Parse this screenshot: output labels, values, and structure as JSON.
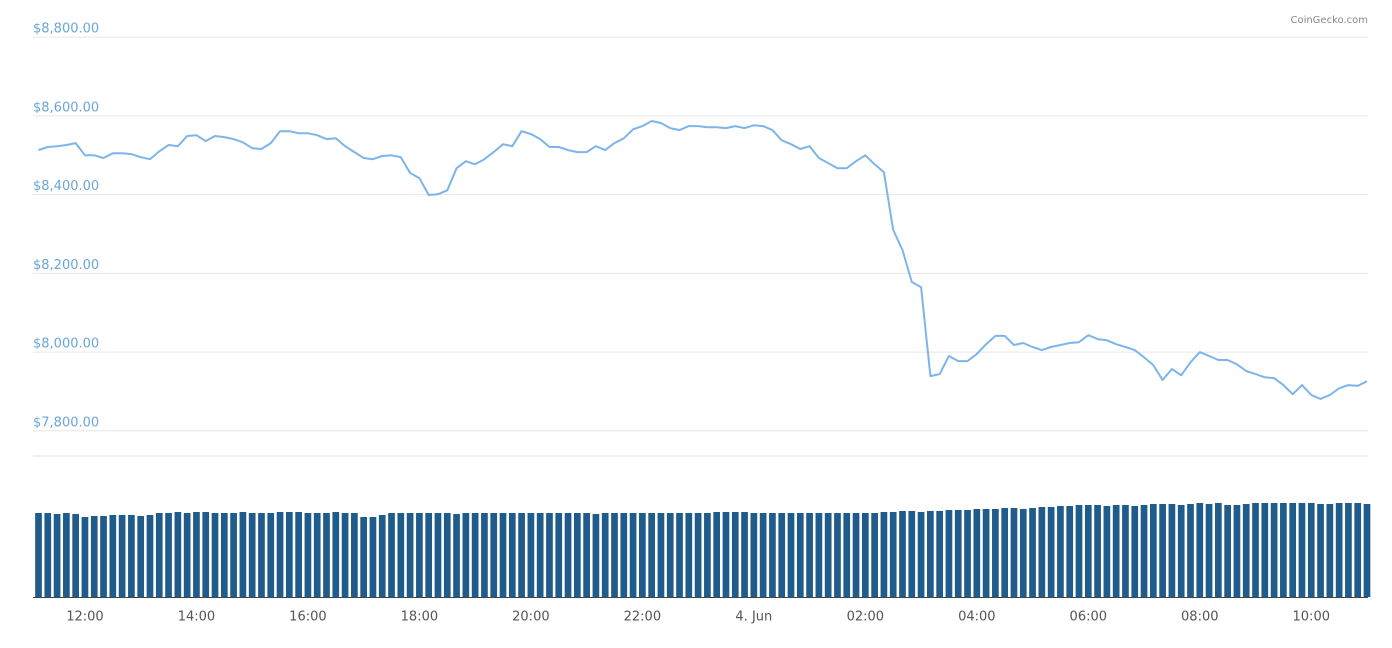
{
  "chart_data": {
    "type": "line",
    "source": "CoinGecko.com",
    "categories": [
      "11:10",
      "11:20",
      "11:30",
      "11:40",
      "11:50",
      "12:00",
      "12:10",
      "12:20",
      "12:30",
      "12:40",
      "12:50",
      "13:00",
      "13:10",
      "13:20",
      "13:30",
      "13:40",
      "13:50",
      "14:00",
      "14:10",
      "14:20",
      "14:30",
      "14:40",
      "14:50",
      "15:00",
      "15:10",
      "15:20",
      "15:30",
      "15:40",
      "15:50",
      "16:00",
      "16:10",
      "16:20",
      "16:30",
      "16:40",
      "16:50",
      "17:00",
      "17:10",
      "17:20",
      "17:30",
      "17:40",
      "17:50",
      "18:00",
      "18:10",
      "18:20",
      "18:30",
      "18:40",
      "18:50",
      "19:00",
      "19:10",
      "19:20",
      "19:30",
      "19:40",
      "19:50",
      "20:00",
      "20:10",
      "20:20",
      "20:30",
      "20:40",
      "20:50",
      "21:00",
      "21:10",
      "21:20",
      "21:30",
      "21:40",
      "21:50",
      "22:00",
      "22:10",
      "22:20",
      "22:30",
      "22:40",
      "22:50",
      "23:00",
      "23:10",
      "23:20",
      "23:30",
      "23:40",
      "23:50",
      "00:00",
      "00:10",
      "00:20",
      "00:30",
      "00:40",
      "00:50",
      "01:00",
      "01:10",
      "01:20",
      "01:30",
      "01:40",
      "01:50",
      "02:00",
      "02:10",
      "02:20",
      "02:30",
      "02:40",
      "02:50",
      "03:00",
      "03:10",
      "03:20",
      "03:30",
      "03:40",
      "03:50",
      "04:00",
      "04:10",
      "04:20",
      "04:30",
      "04:40",
      "04:50",
      "05:00",
      "05:10",
      "05:20",
      "05:30",
      "05:40",
      "05:50",
      "06:00",
      "06:10",
      "06:20",
      "06:30",
      "06:40",
      "06:50",
      "07:00",
      "07:10",
      "07:20",
      "07:30",
      "07:40",
      "07:50",
      "08:00",
      "08:10",
      "08:20",
      "08:30",
      "08:40",
      "08:50",
      "09:00",
      "09:10",
      "09:20",
      "09:30",
      "09:40",
      "09:50",
      "10:00",
      "10:10",
      "10:20",
      "10:30",
      "10:40",
      "10:50",
      "11:00"
    ],
    "values": [
      8513,
      8521,
      8523,
      8526,
      8531,
      8500,
      8500,
      8493,
      8505,
      8505,
      8503,
      8495,
      8490,
      8510,
      8526,
      8523,
      8549,
      8551,
      8536,
      8549,
      8546,
      8541,
      8533,
      8518,
      8516,
      8531,
      8561,
      8561,
      8556,
      8556,
      8551,
      8541,
      8543,
      8523,
      8508,
      8493,
      8490,
      8498,
      8500,
      8495,
      8455,
      8442,
      8399,
      8401,
      8411,
      8467,
      8485,
      8477,
      8490,
      8508,
      8528,
      8523,
      8561,
      8554,
      8541,
      8521,
      8521,
      8513,
      8508,
      8508,
      8523,
      8513,
      8531,
      8543,
      8566,
      8574,
      8587,
      8582,
      8569,
      8564,
      8574,
      8574,
      8571,
      8571,
      8569,
      8574,
      8569,
      8576,
      8574,
      8564,
      8538,
      8528,
      8516,
      8523,
      8493,
      8480,
      8467,
      8467,
      8485,
      8500,
      8477,
      8457,
      8310,
      8259,
      8178,
      8165,
      7939,
      7944,
      7990,
      7977,
      7977,
      7995,
      8020,
      8041,
      8041,
      8018,
      8023,
      8013,
      8005,
      8013,
      8018,
      8023,
      8025,
      8043,
      8033,
      8030,
      8020,
      8013,
      8005,
      7987,
      7967,
      7929,
      7957,
      7941,
      7974,
      8000,
      7990,
      7980,
      7980,
      7969,
      7952,
      7944,
      7936,
      7934,
      7916,
      7893,
      7916,
      7891,
      7881,
      7891,
      7908,
      7916,
      7914,
      7926
    ],
    "color": "#7cb5ec",
    "volume_values": [
      84,
      84,
      83,
      84,
      83,
      80,
      81,
      81,
      82,
      82,
      82,
      81,
      82,
      84,
      84,
      85,
      84,
      85,
      85,
      84,
      84,
      84,
      85,
      84,
      84,
      84,
      85,
      85,
      85,
      84,
      84,
      84,
      85,
      84,
      84,
      80,
      80,
      82,
      84,
      84,
      84,
      84,
      84,
      84,
      84,
      83,
      84,
      84,
      84,
      84,
      84,
      84,
      84,
      84,
      84,
      84,
      84,
      84,
      84,
      84,
      83,
      84,
      84,
      84,
      84,
      84,
      84,
      84,
      84,
      84,
      84,
      84,
      84,
      85,
      85,
      85,
      85,
      84,
      84,
      84,
      84,
      84,
      84,
      84,
      84,
      84,
      84,
      84,
      84,
      84,
      84,
      85,
      85,
      86,
      86,
      85,
      86,
      86,
      87,
      87,
      87,
      88,
      88,
      88,
      89,
      89,
      88,
      89,
      90,
      90,
      91,
      91,
      92,
      92,
      92,
      91,
      92,
      92,
      91,
      92,
      93,
      93,
      93,
      92,
      93,
      94,
      93,
      94,
      92,
      92,
      93,
      94,
      94,
      94,
      94,
      94,
      94,
      94,
      93,
      93,
      94,
      94,
      94,
      93
    ],
    "volume_color": "#1f5b8b",
    "ylim": [
      7736,
      8869
    ],
    "yticks": [
      {
        "value": 7800,
        "label": "$7,800.00"
      },
      {
        "value": 8000,
        "label": "$8,000.00"
      },
      {
        "value": 8200,
        "label": "$8,200.00"
      },
      {
        "value": 8400,
        "label": "$8,400.00"
      },
      {
        "value": 8600,
        "label": "$8,600.00"
      },
      {
        "value": 8800,
        "label": "$8,800.00"
      }
    ],
    "xticks": [
      "12:00",
      "14:00",
      "16:00",
      "18:00",
      "20:00",
      "22:00",
      {
        "value": "00:00",
        "label": "4. Jun"
      },
      "02:00",
      "04:00",
      "06:00",
      "08:00",
      "10:00"
    ],
    "grid": true
  }
}
